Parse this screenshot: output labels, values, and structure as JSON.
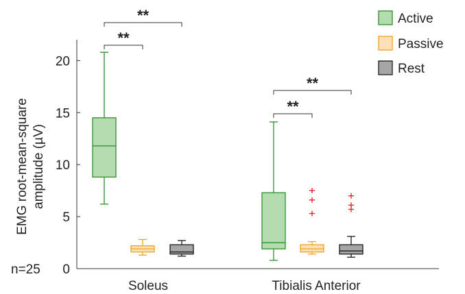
{
  "chart_data": {
    "type": "box",
    "ylabel": "EMG root-mean-square amplitude (µV)",
    "ylabel_lines": [
      "EMG root-mean-square",
      "amplitude (µV)"
    ],
    "n_label": "n=25",
    "ylim": [
      0,
      22
    ],
    "yticks": [
      0,
      5,
      10,
      15,
      20
    ],
    "categories": [
      "Soleus",
      "Tibialis Anterior"
    ],
    "legend_position": "top-right",
    "grid": false,
    "series": [
      {
        "name": "Active",
        "stroke": "#2a8f2a",
        "fill": "#b5dbb0",
        "boxes": [
          {
            "whisker_low": 6.2,
            "q1": 8.8,
            "median": 11.8,
            "q3": 14.5,
            "whisker_high": 20.8,
            "outliers": []
          },
          {
            "whisker_low": 0.8,
            "q1": 1.9,
            "median": 2.5,
            "q3": 7.3,
            "whisker_high": 14.1,
            "outliers": []
          }
        ]
      },
      {
        "name": "Passive",
        "stroke": "#f0a020",
        "fill": "#fde0b8",
        "boxes": [
          {
            "whisker_low": 1.3,
            "q1": 1.6,
            "median": 1.9,
            "q3": 2.2,
            "whisker_high": 2.8,
            "outliers": []
          },
          {
            "whisker_low": 1.4,
            "q1": 1.6,
            "median": 1.9,
            "q3": 2.3,
            "whisker_high": 2.6,
            "outliers": [
              5.3,
              6.6,
              7.5
            ]
          }
        ]
      },
      {
        "name": "Rest",
        "stroke": "#1a1a1a",
        "fill": "#a6a6a6",
        "boxes": [
          {
            "whisker_low": 1.2,
            "q1": 1.4,
            "median": 1.6,
            "q3": 2.3,
            "whisker_high": 2.7,
            "outliers": []
          },
          {
            "whisker_low": 1.1,
            "q1": 1.4,
            "median": 1.7,
            "q3": 2.3,
            "whisker_high": 3.1,
            "outliers": [
              5.7,
              6.1,
              7.0
            ]
          }
        ]
      }
    ],
    "outlier_color": "#e8232a",
    "significance": [
      {
        "category": 0,
        "from_series": 0,
        "to_series": 1,
        "label": "**",
        "level": 1
      },
      {
        "category": 0,
        "from_series": 0,
        "to_series": 2,
        "label": "**",
        "level": 2
      },
      {
        "category": 1,
        "from_series": 0,
        "to_series": 1,
        "label": "**",
        "level": 1
      },
      {
        "category": 1,
        "from_series": 0,
        "to_series": 2,
        "label": "**",
        "level": 2
      }
    ]
  }
}
